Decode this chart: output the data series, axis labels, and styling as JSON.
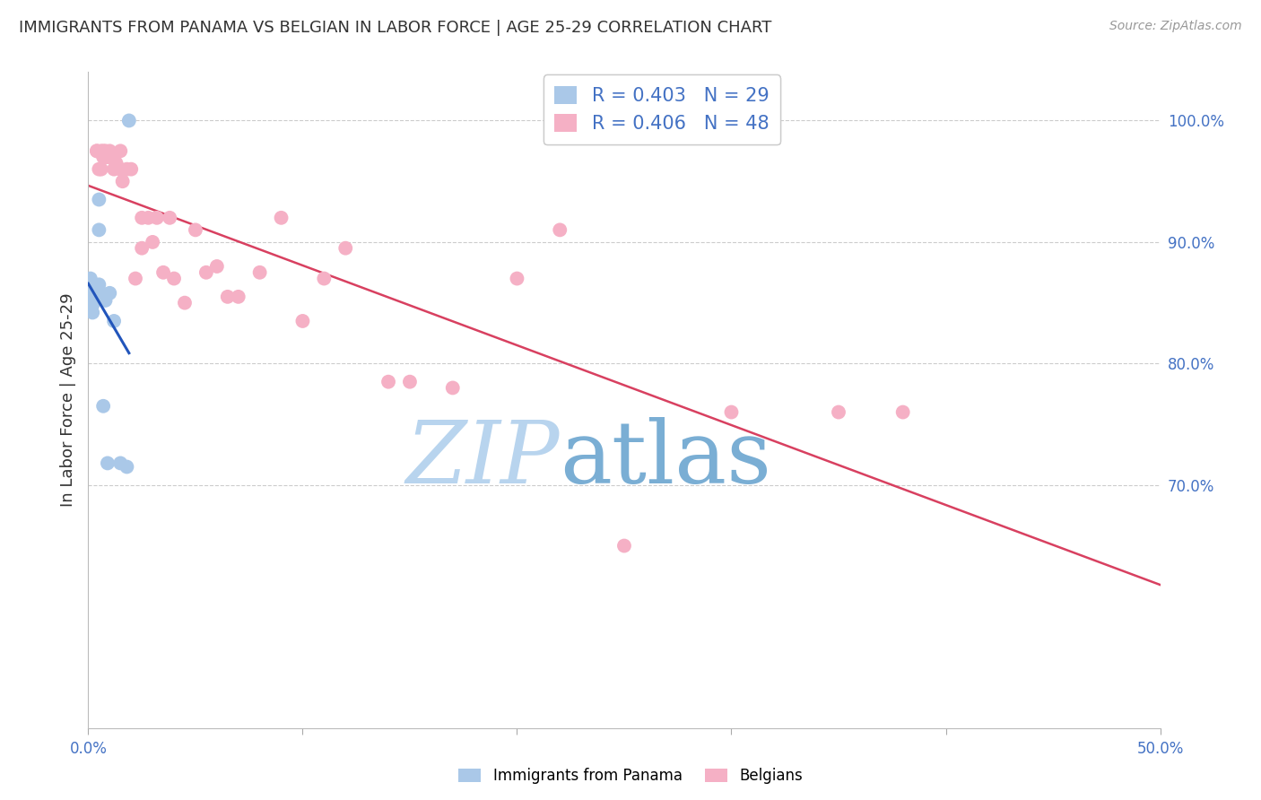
{
  "title": "IMMIGRANTS FROM PANAMA VS BELGIAN IN LABOR FORCE | AGE 25-29 CORRELATION CHART",
  "source": "Source: ZipAtlas.com",
  "ylabel": "In Labor Force | Age 25-29",
  "xlim": [
    0.0,
    0.5
  ],
  "ylim": [
    0.5,
    1.04
  ],
  "yticks": [
    1.0,
    0.9,
    0.8,
    0.7
  ],
  "ytick_labels": [
    "100.0%",
    "90.0%",
    "80.0%",
    "70.0%"
  ],
  "legend_panama": "R = 0.403   N = 29",
  "legend_belgian": "R = 0.406   N = 48",
  "legend_label_panama": "Immigrants from Panama",
  "legend_label_belgian": "Belgians",
  "panama_color": "#aac8e8",
  "belgian_color": "#f5b0c5",
  "panama_line_color": "#2255bb",
  "belgian_line_color": "#d84060",
  "watermark_text": "ZIPatlas",
  "watermark_color": "#d8eaf8",
  "background_color": "#ffffff",
  "grid_color": "#cccccc",
  "title_color": "#333333",
  "right_tick_color": "#4472c4",
  "bottom_tick_color": "#4472c4",
  "panama_x": [
    0.002,
    0.003,
    0.003,
    0.003,
    0.003,
    0.004,
    0.004,
    0.004,
    0.005,
    0.005,
    0.005,
    0.006,
    0.006,
    0.007,
    0.008,
    0.009,
    0.01,
    0.012,
    0.015,
    0.018,
    0.001,
    0.001,
    0.001,
    0.002,
    0.002,
    0.002,
    0.002,
    0.002,
    0.019
  ],
  "panama_y": [
    0.858,
    0.862,
    0.865,
    0.86,
    0.858,
    0.862,
    0.855,
    0.858,
    0.865,
    0.91,
    0.935,
    0.855,
    0.858,
    0.765,
    0.852,
    0.718,
    0.858,
    0.835,
    0.718,
    0.715,
    0.87,
    0.865,
    0.862,
    0.858,
    0.855,
    0.853,
    0.848,
    0.842,
    1.0
  ],
  "belgian_x": [
    0.005,
    0.006,
    0.007,
    0.008,
    0.009,
    0.01,
    0.012,
    0.013,
    0.015,
    0.016,
    0.018,
    0.02,
    0.022,
    0.025,
    0.025,
    0.028,
    0.03,
    0.032,
    0.035,
    0.038,
    0.04,
    0.045,
    0.05,
    0.055,
    0.06,
    0.065,
    0.07,
    0.08,
    0.09,
    0.1,
    0.11,
    0.12,
    0.14,
    0.15,
    0.17,
    0.2,
    0.22,
    0.25,
    0.3,
    0.35,
    0.38,
    0.004,
    0.004,
    0.006,
    0.007,
    0.008,
    0.01,
    0.015
  ],
  "belgian_y": [
    0.96,
    0.96,
    0.97,
    0.97,
    0.97,
    0.97,
    0.96,
    0.965,
    0.96,
    0.95,
    0.96,
    0.96,
    0.87,
    0.92,
    0.895,
    0.92,
    0.9,
    0.92,
    0.875,
    0.92,
    0.87,
    0.85,
    0.91,
    0.875,
    0.88,
    0.855,
    0.855,
    0.875,
    0.92,
    0.835,
    0.87,
    0.895,
    0.785,
    0.785,
    0.78,
    0.87,
    0.91,
    0.65,
    0.76,
    0.76,
    0.76,
    0.975,
    0.975,
    0.975,
    0.975,
    0.975,
    0.975,
    0.975
  ]
}
